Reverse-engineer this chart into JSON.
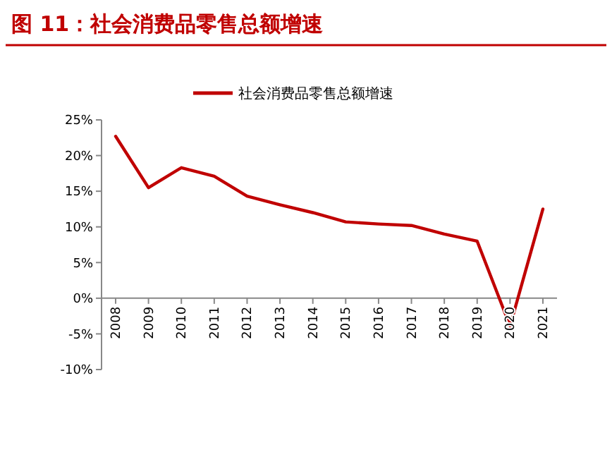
{
  "chart_data": {
    "type": "line",
    "title": "图 11：社会消费品零售总额增速",
    "categories": [
      "2008",
      "2009",
      "2010",
      "2011",
      "2012",
      "2013",
      "2014",
      "2015",
      "2016",
      "2017",
      "2018",
      "2019",
      "2020",
      "2021"
    ],
    "series": [
      {
        "name": "社会消费品零售总额增速",
        "color": "#c00000",
        "values": [
          22.7,
          15.5,
          18.3,
          17.1,
          14.3,
          13.1,
          12.0,
          10.7,
          10.4,
          10.2,
          9.0,
          8.0,
          -3.9,
          12.5
        ]
      }
    ],
    "ylim": [
      -10,
      25
    ],
    "yticks": [
      {
        "value": -10,
        "label": "-10%"
      },
      {
        "value": -5,
        "label": "-5%"
      },
      {
        "value": 0,
        "label": "0%"
      },
      {
        "value": 5,
        "label": "5%"
      },
      {
        "value": 10,
        "label": "10%"
      },
      {
        "value": 15,
        "label": "15%"
      },
      {
        "value": 20,
        "label": "20%"
      },
      {
        "value": 25,
        "label": "25%"
      }
    ],
    "grid": false,
    "legend": "top",
    "marker": "none",
    "line_style": "solid"
  }
}
